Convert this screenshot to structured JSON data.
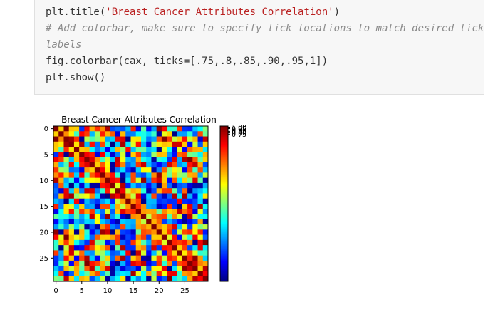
{
  "code": {
    "line1_fn": "plt.title(",
    "line1_str": "'Breast Cancer Attributes Correlation'",
    "line1_end": ")",
    "line2_comment": "# Add colorbar, make sure to specify tick locations to match desired tick",
    "line3_comment": "labels",
    "line4_fn": "fig.colorbar(cax, ticks=",
    "line4_list": "[.75,.8,.85,.90,.95,1]",
    "line4_end": ")",
    "line5": "plt.show()"
  },
  "chart_data": {
    "type": "heatmap",
    "title": "Breast Cancer Attributes Correlation",
    "x_ticks": [
      "0",
      "5",
      "10",
      "15",
      "20",
      "25"
    ],
    "y_ticks": [
      "0",
      "5",
      "10",
      "15",
      "20",
      "25"
    ],
    "x_tick_values": [
      0,
      5,
      10,
      15,
      20,
      25
    ],
    "y_tick_values": [
      0,
      5,
      10,
      15,
      20,
      25
    ],
    "grid_size": 30,
    "colorbar_ticks": [
      "1.00",
      "0.95",
      "0.90",
      "0.85",
      "0.80",
      "0.75"
    ],
    "colorbar_tick_values": [
      1.0,
      0.95,
      0.9,
      0.85,
      0.8,
      0.75
    ],
    "colormap": "jet",
    "colormap_stops": [
      "#00007f",
      "#0000ff",
      "#007fff",
      "#00ffff",
      "#7fff7f",
      "#ffff00",
      "#ff7f00",
      "#ff0000",
      "#7f0000"
    ]
  }
}
